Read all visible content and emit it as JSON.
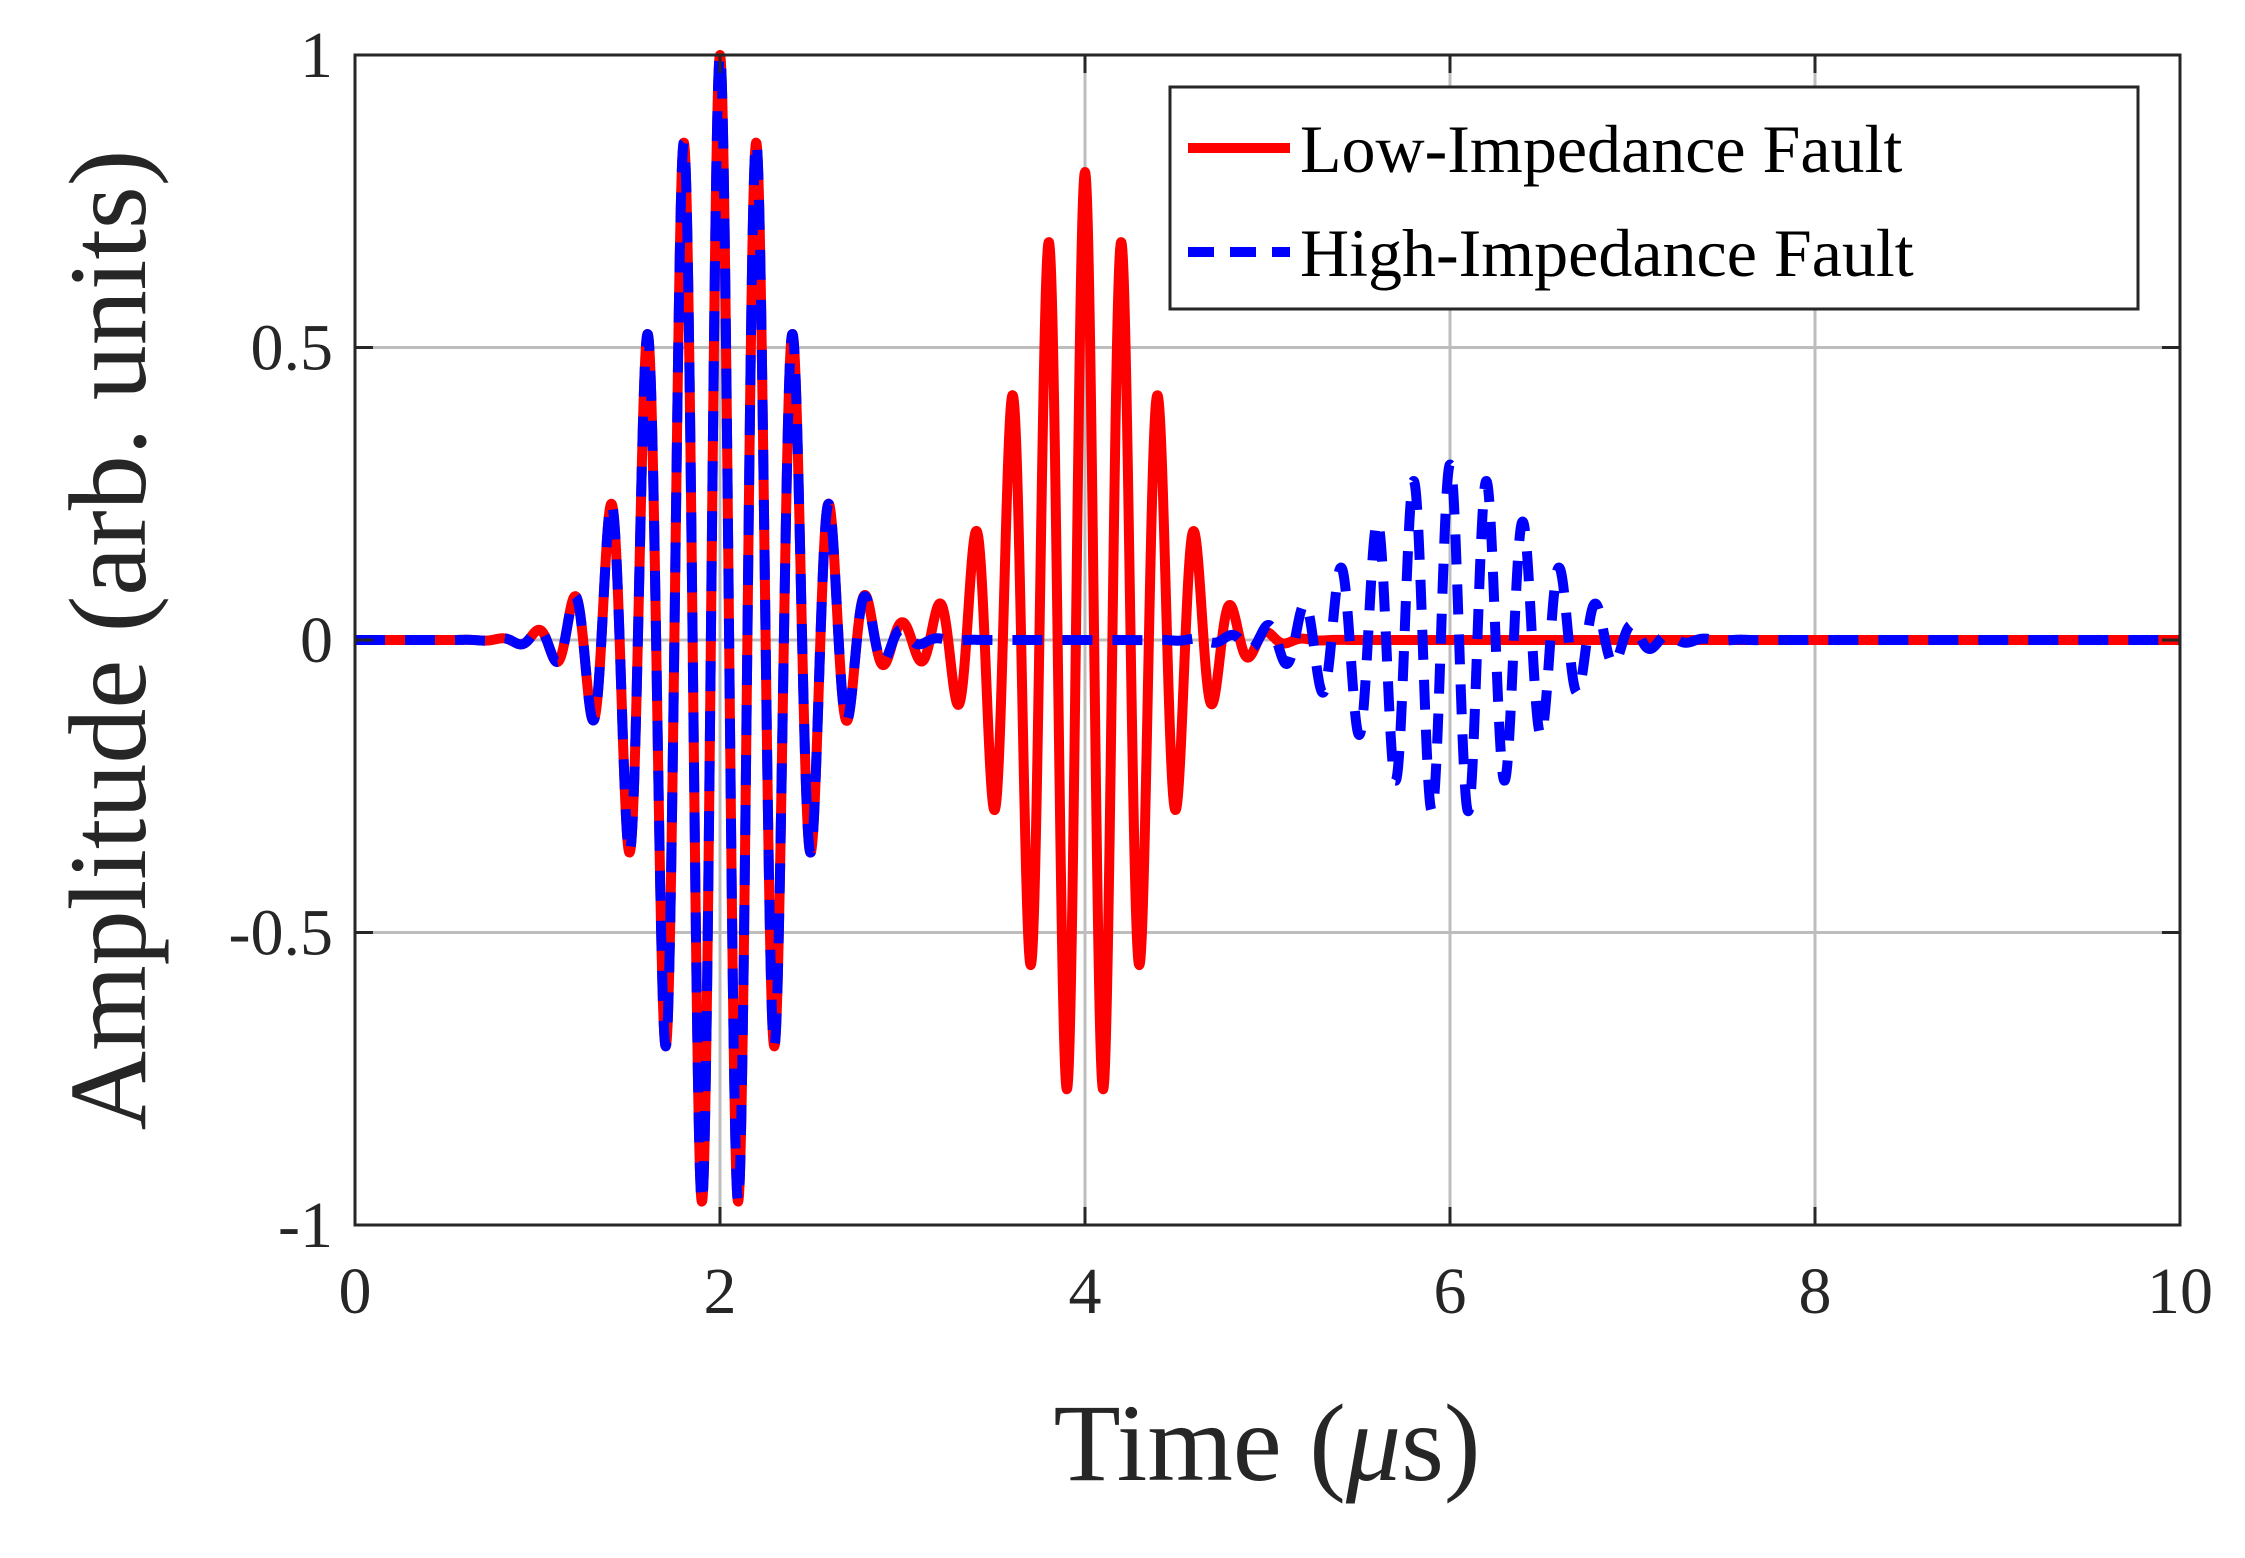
{
  "chart_data": {
    "type": "line",
    "title": "",
    "xlabel": "Time (μs)",
    "xlabel_prefix": "Time (",
    "xlabel_unit_symbol": "μ",
    "xlabel_suffix": "s)",
    "ylabel": "Amplitude (arb. units)",
    "xlim": [
      0,
      10
    ],
    "ylim": [
      -1,
      1
    ],
    "xticks": [
      0,
      2,
      4,
      6,
      8,
      10
    ],
    "xtick_labels": [
      "0",
      "2",
      "4",
      "6",
      "8",
      "10"
    ],
    "yticks": [
      -1,
      -0.5,
      0,
      0.5,
      1
    ],
    "ytick_labels": [
      "-1",
      "-0.5",
      "0",
      "0.5",
      "1"
    ],
    "grid": true,
    "legend_position": "top-right",
    "series": [
      {
        "name": "Low-Impedance Fault",
        "color": "#ff0000",
        "style": "solid",
        "wave_packets": [
          {
            "center_us": 2.0,
            "amplitude": 1.0,
            "frequency_mhz": 5,
            "width_us": 0.35
          },
          {
            "center_us": 4.0,
            "amplitude": 0.8,
            "frequency_mhz": 5,
            "width_us": 0.35
          }
        ]
      },
      {
        "name": "High-Impedance Fault",
        "color": "#0000ff",
        "style": "dashed",
        "wave_packets": [
          {
            "center_us": 2.0,
            "amplitude": 1.0,
            "frequency_mhz": 5,
            "width_us": 0.35
          },
          {
            "center_us": 6.0,
            "amplitude": 0.3,
            "frequency_mhz": 5,
            "width_us": 0.45
          }
        ]
      }
    ]
  }
}
